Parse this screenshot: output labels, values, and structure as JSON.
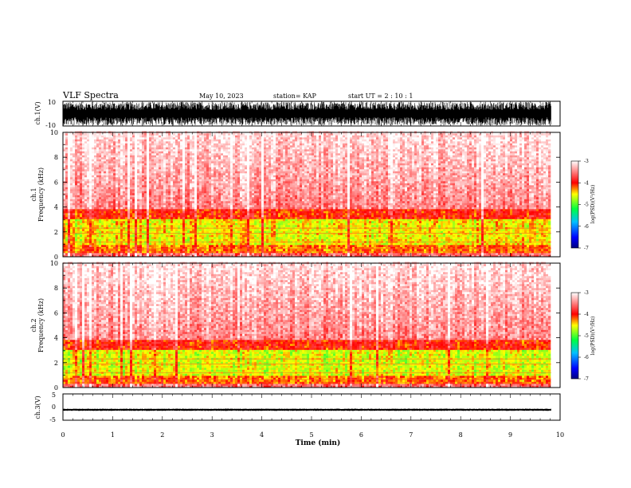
{
  "header": {
    "title": "VLF Spectra",
    "date": "May 10, 2023",
    "station": "station= KAP",
    "start_ut": "start  UT  =   2  : 10 : 1"
  },
  "chart_data": [
    {
      "type": "line",
      "name": "ch1-waveform",
      "ylabel": "ch.1(V)",
      "ylim": [
        -10,
        10
      ],
      "yticks": [
        "10",
        "-10"
      ],
      "xlim": [
        0,
        10
      ],
      "note_values": "dense saturated oscillation approx. between -9 and 9 V across 0-9.8 min"
    },
    {
      "type": "heatmap",
      "name": "ch1-spectrogram",
      "ylabel": "ch.1\nFrequency  (kHz)",
      "ylim": [
        0,
        10
      ],
      "yticks": [
        "0",
        "2",
        "4",
        "6",
        "8",
        "10"
      ],
      "xlim": [
        0,
        10
      ],
      "data_extent_x": [
        0,
        9.82
      ],
      "colorbar": {
        "label": "log(PSD)(V²/Hz)",
        "range": [
          -7,
          -3
        ],
        "ticks": [
          "-3",
          "-4",
          "-5",
          "-6",
          "-7"
        ]
      },
      "bands": [
        {
          "f_low": 0.0,
          "f_high": 0.3,
          "level": -3.6
        },
        {
          "f_low": 0.3,
          "f_high": 0.9,
          "level": -4.2
        },
        {
          "f_low": 0.9,
          "f_high": 3.5,
          "level": -4.5
        },
        {
          "f_low": 3.5,
          "f_high": 10.0,
          "level": -3.5
        }
      ]
    },
    {
      "type": "heatmap",
      "name": "ch2-spectrogram",
      "ylabel": "ch.2\nFrequency  (kHz)",
      "ylim": [
        0,
        10
      ],
      "yticks": [
        "0",
        "2",
        "4",
        "6",
        "8",
        "10"
      ],
      "xlim": [
        0,
        10
      ],
      "data_extent_x": [
        0,
        9.82
      ],
      "colorbar": {
        "label": "log(PSD)(V²/Hz)",
        "range": [
          -7,
          -3
        ],
        "ticks": [
          "-3",
          "-4",
          "-5",
          "-6",
          "-7"
        ]
      },
      "bands": [
        {
          "f_low": 0.0,
          "f_high": 0.3,
          "level": -3.6
        },
        {
          "f_low": 0.3,
          "f_high": 0.9,
          "level": -4.2
        },
        {
          "f_low": 0.9,
          "f_high": 3.5,
          "level": -4.6
        },
        {
          "f_low": 3.5,
          "f_high": 10.0,
          "level": -3.5
        }
      ]
    },
    {
      "type": "line",
      "name": "ch3-waveform",
      "ylabel": "ch.3(V)",
      "ylim": [
        -5,
        5
      ],
      "yticks": [
        "5",
        "0",
        "-5"
      ],
      "xlim": [
        0,
        10
      ],
      "note_values": "narrow band approx. between -1.3 and -0.7 V across 0-9.8 min"
    }
  ],
  "x_axis": {
    "label": "Time  (min)",
    "ticks": [
      "0",
      "1",
      "2",
      "3",
      "4",
      "5",
      "6",
      "7",
      "8",
      "9",
      "10"
    ]
  }
}
